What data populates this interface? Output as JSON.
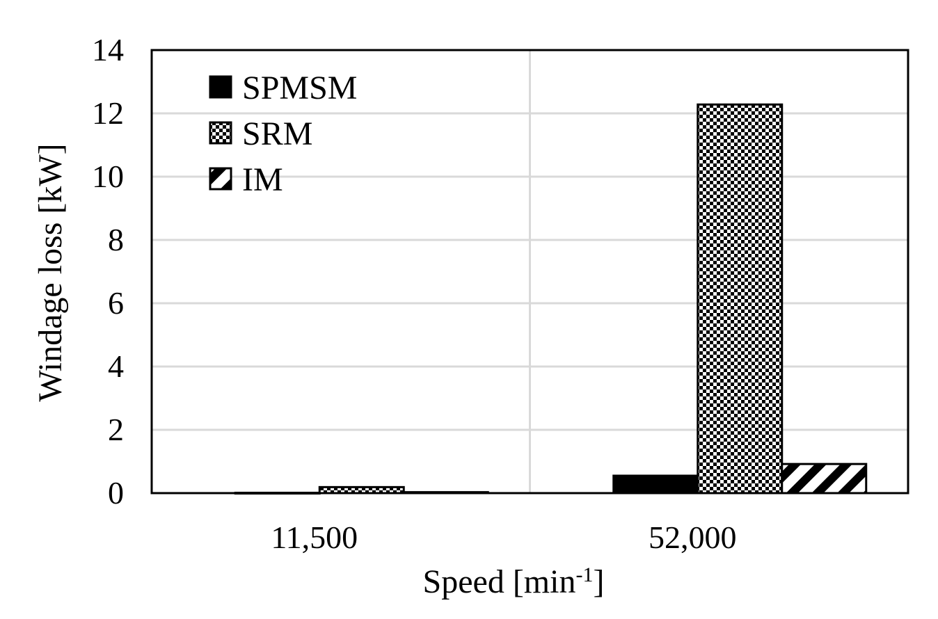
{
  "chart_data": {
    "type": "bar",
    "title": "",
    "xlabel": "Speed [min",
    "xlabel_superscript": "-1",
    "xlabel_suffix": "]",
    "ylabel": "Windage loss [kW]",
    "categories": [
      "11,500",
      "52,000"
    ],
    "ylim": [
      0,
      14
    ],
    "yticks": [
      0,
      2,
      4,
      6,
      8,
      10,
      12,
      14
    ],
    "grid": true,
    "legend_position": "top-left",
    "series": [
      {
        "name": "SPMSM",
        "values": [
          0.01,
          0.55
        ],
        "pattern": "solid"
      },
      {
        "name": "SRM",
        "values": [
          0.19,
          12.28
        ],
        "pattern": "checker"
      },
      {
        "name": "IM",
        "values": [
          0.03,
          0.92
        ],
        "pattern": "diagonal"
      }
    ]
  },
  "colors": {
    "bar_fill": "#000000",
    "grid": "#d9d9d9",
    "axis": "#000000"
  }
}
